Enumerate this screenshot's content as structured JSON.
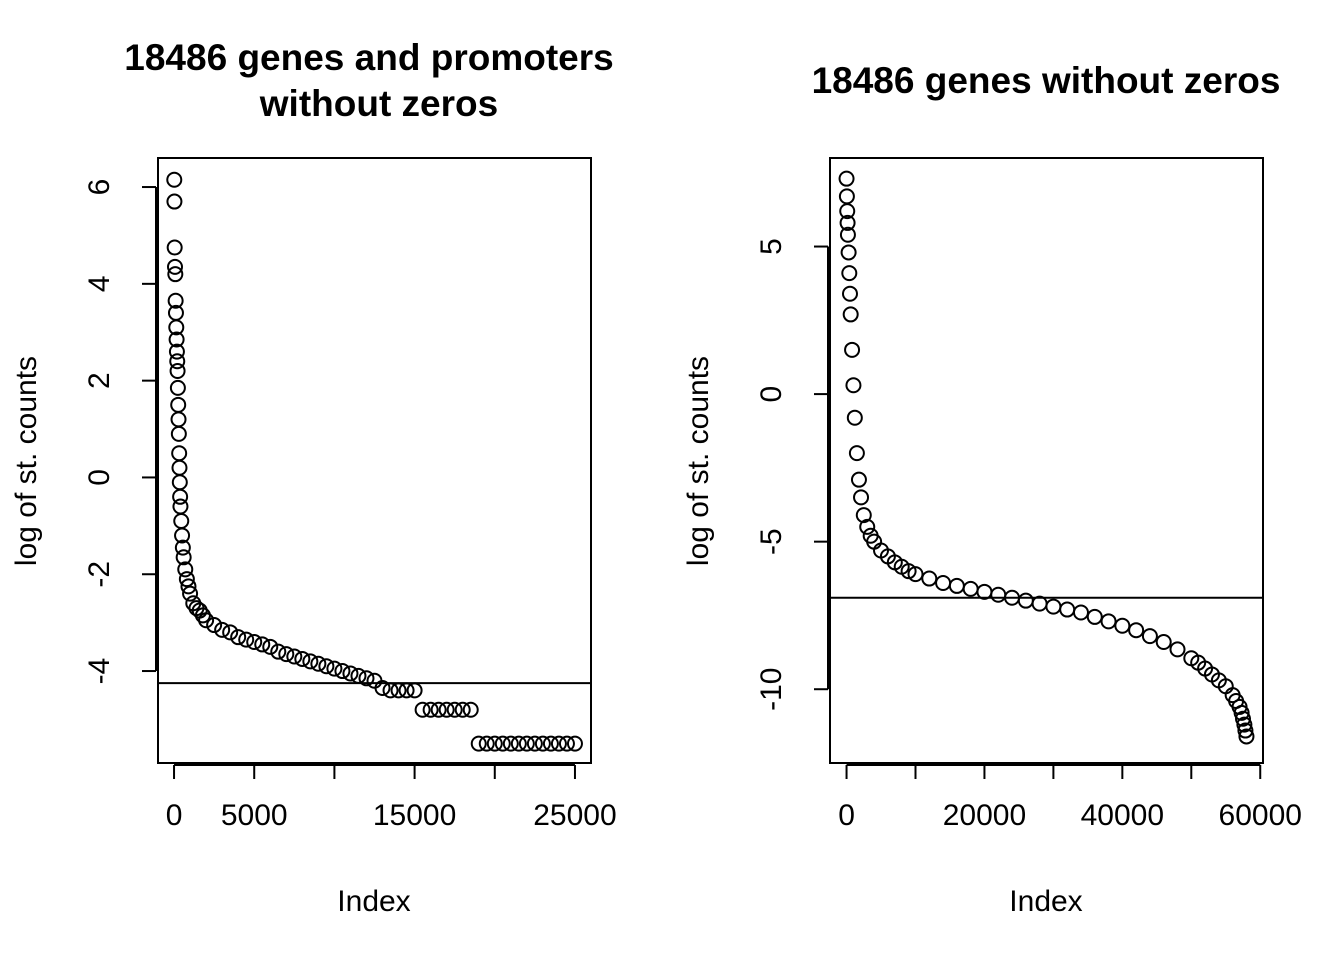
{
  "chart_data": [
    {
      "type": "scatter",
      "title_lines": [
        "18486 genes and promoters",
        "without zeros"
      ],
      "xlabel": "Index",
      "ylabel": "log of st. counts",
      "xlim": [
        -1000,
        26000
      ],
      "ylim": [
        -5.9,
        6.6
      ],
      "xticks": [
        0,
        5000,
        10000,
        15000,
        20000,
        25000
      ],
      "xtick_labels": [
        "0",
        "5000",
        "",
        "15000",
        "",
        "25000"
      ],
      "yticks": [
        -4,
        -2,
        0,
        2,
        4,
        6
      ],
      "ytick_labels": [
        "-4",
        "-2",
        "0",
        "2",
        "4",
        "6"
      ],
      "hline_y": -4.25,
      "series": [
        {
          "x": [
            15,
            25,
            40,
            60,
            80,
            100,
            120,
            140,
            160,
            180,
            200,
            220,
            240,
            260,
            280,
            300,
            320,
            340,
            360,
            380,
            400,
            450,
            500,
            550,
            600,
            700,
            800,
            900,
            1000,
            1200,
            1400,
            1600,
            1800,
            2000,
            2500,
            3000,
            3500,
            4000,
            4500,
            5000,
            5500,
            6000,
            6500,
            7000,
            7500,
            8000,
            8500,
            9000,
            9500,
            10000,
            10500,
            11000,
            11500,
            12000,
            12500,
            13000,
            13500,
            14000,
            14500,
            15000,
            15500,
            16000,
            16500,
            17000,
            17500,
            18000,
            18500,
            19000,
            19500,
            20000,
            20500,
            21000,
            21500,
            22000,
            22500,
            23000,
            23500,
            24000,
            24500,
            25000
          ],
          "y": [
            6.15,
            5.7,
            4.75,
            4.35,
            4.2,
            3.65,
            3.4,
            3.1,
            2.85,
            2.6,
            2.4,
            2.2,
            1.85,
            1.5,
            1.2,
            0.9,
            0.5,
            0.2,
            -0.1,
            -0.4,
            -0.6,
            -0.9,
            -1.2,
            -1.45,
            -1.65,
            -1.9,
            -2.1,
            -2.25,
            -2.4,
            -2.6,
            -2.7,
            -2.75,
            -2.85,
            -2.95,
            -3.05,
            -3.15,
            -3.2,
            -3.3,
            -3.35,
            -3.4,
            -3.45,
            -3.5,
            -3.6,
            -3.65,
            -3.7,
            -3.75,
            -3.8,
            -3.85,
            -3.9,
            -3.95,
            -4.0,
            -4.05,
            -4.1,
            -4.15,
            -4.2,
            -4.35,
            -4.4,
            -4.4,
            -4.4,
            -4.4,
            -4.8,
            -4.8,
            -4.8,
            -4.8,
            -4.8,
            -4.8,
            -4.8,
            -5.5,
            -5.5,
            -5.5,
            -5.5,
            -5.5,
            -5.5,
            -5.5,
            -5.5,
            -5.5,
            -5.5,
            -5.5,
            -5.5,
            -5.5
          ]
        }
      ]
    },
    {
      "type": "scatter",
      "title_lines": [
        "18486 genes without zeros"
      ],
      "xlabel": "Index",
      "ylabel": "log of st. counts",
      "xlim": [
        -2400,
        60400
      ],
      "ylim": [
        -12.5,
        8.0
      ],
      "xticks": [
        0,
        10000,
        20000,
        30000,
        40000,
        50000,
        60000
      ],
      "xtick_labels": [
        "0",
        "",
        "20000",
        "",
        "40000",
        "",
        "60000"
      ],
      "yticks": [
        -10,
        -5,
        0,
        5
      ],
      "ytick_labels": [
        "-10",
        "-5",
        "0",
        "5"
      ],
      "hline_y": -6.9,
      "series": [
        {
          "x": [
            0,
            50,
            100,
            150,
            200,
            300,
            400,
            500,
            600,
            800,
            1000,
            1200,
            1500,
            1800,
            2100,
            2500,
            3000,
            3500,
            4000,
            5000,
            6000,
            7000,
            8000,
            9000,
            10000,
            12000,
            14000,
            16000,
            18000,
            20000,
            22000,
            24000,
            26000,
            28000,
            30000,
            32000,
            34000,
            36000,
            38000,
            40000,
            42000,
            44000,
            46000,
            48000,
            50000,
            51000,
            52000,
            53000,
            54000,
            55000,
            56000,
            56500,
            57000,
            57300,
            57500,
            57700,
            57850,
            58000
          ],
          "y": [
            7.3,
            6.7,
            6.2,
            5.8,
            5.4,
            4.8,
            4.1,
            3.4,
            2.7,
            1.5,
            0.3,
            -0.8,
            -2.0,
            -2.9,
            -3.5,
            -4.1,
            -4.5,
            -4.8,
            -5.0,
            -5.3,
            -5.5,
            -5.7,
            -5.85,
            -6.0,
            -6.1,
            -6.25,
            -6.4,
            -6.5,
            -6.6,
            -6.7,
            -6.8,
            -6.9,
            -7.0,
            -7.1,
            -7.2,
            -7.3,
            -7.4,
            -7.55,
            -7.7,
            -7.85,
            -8.0,
            -8.2,
            -8.4,
            -8.65,
            -8.95,
            -9.1,
            -9.3,
            -9.5,
            -9.7,
            -9.9,
            -10.2,
            -10.4,
            -10.6,
            -10.8,
            -11.0,
            -11.2,
            -11.4,
            -11.6
          ]
        }
      ]
    }
  ]
}
